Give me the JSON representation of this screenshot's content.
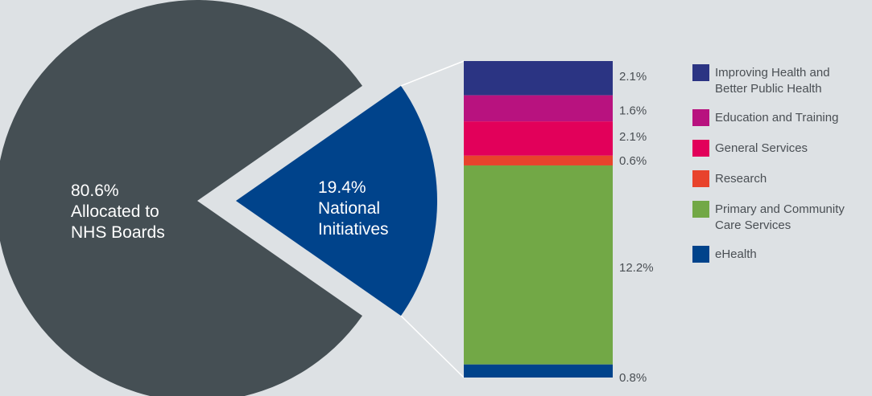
{
  "chart_data": {
    "type": "bar-of-pie",
    "pie": [
      {
        "name": "Allocated to NHS Boards",
        "value": 80.6,
        "label_lines": [
          "80.6%",
          "Allocated to",
          "NHS Boards"
        ],
        "color": "#454f54"
      },
      {
        "name": "National Initiatives",
        "value": 19.4,
        "label_lines": [
          "19.4%",
          "National",
          "Initiatives"
        ],
        "color": "#00438b"
      }
    ],
    "stack": [
      {
        "name": "Improving Health and Better Public Health",
        "legend_lines": [
          "Improving Health and",
          "Better Public Health"
        ],
        "value": 2.1,
        "label": "2.1%",
        "color": "#2b3483"
      },
      {
        "name": "Education and Training",
        "legend_lines": [
          "Education and Training"
        ],
        "value": 1.6,
        "label": "1.6%",
        "color": "#b8127f"
      },
      {
        "name": "General Services",
        "legend_lines": [
          "General Services"
        ],
        "value": 2.1,
        "label": "2.1%",
        "color": "#e2005a"
      },
      {
        "name": "Research",
        "legend_lines": [
          "Research"
        ],
        "value": 0.6,
        "label": "0.6%",
        "color": "#e8432c"
      },
      {
        "name": "Primary and Community Care Services",
        "legend_lines": [
          "Primary and Community",
          "Care Services"
        ],
        "value": 12.2,
        "label": "12.2%",
        "color": "#72a846"
      },
      {
        "name": "eHealth",
        "legend_lines": [
          "eHealth"
        ],
        "value": 0.8,
        "label": "0.8%",
        "color": "#00438b"
      }
    ],
    "legend_position": "right",
    "grid": false
  }
}
